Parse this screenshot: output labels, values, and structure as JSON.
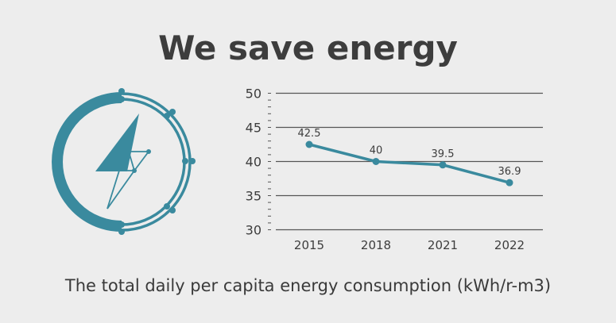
{
  "title": "We save energy",
  "caption": "The total daily per capita energy consumption (kWh/r-m3)",
  "icon": "lightning-bolt-circle-icon",
  "colors": {
    "accent": "#3a8a9e",
    "grid": "#555555",
    "text": "#3d3d3d",
    "background": "#ededed"
  },
  "chart_data": {
    "type": "line",
    "categories": [
      "2015",
      "2018",
      "2021",
      "2022"
    ],
    "values": [
      42.5,
      40,
      39.5,
      36.9
    ],
    "data_labels": [
      "42.5",
      "40",
      "39.5",
      "36.9"
    ],
    "yticks": [
      "30",
      "35",
      "40",
      "45",
      "50"
    ],
    "ylim": [
      30,
      50
    ],
    "grid": true,
    "xlabel": "",
    "ylabel": ""
  }
}
